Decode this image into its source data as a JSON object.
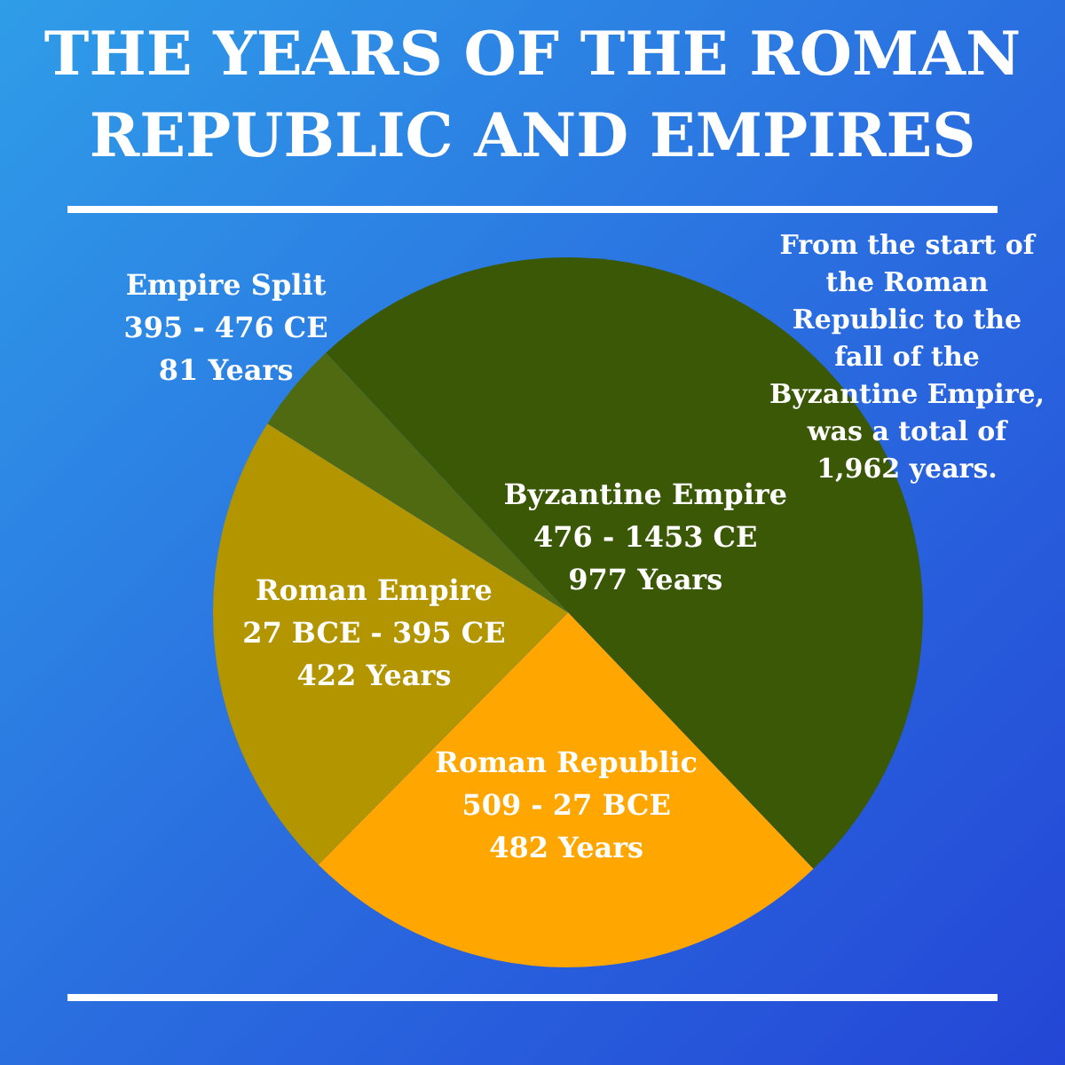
{
  "chart_data": {
    "type": "pie",
    "title": "THE YEARS OF THE ROMAN REPUBLIC AND EMPIRES",
    "categories": [
      "Byzantine Empire\n476 - 1453 CE",
      "Roman Republic\n509 - 27 BCE",
      "Roman Empire\n27 BCE - 395 CE",
      "Empire Split\n395 - 476 CE"
    ],
    "values": [
      977,
      482,
      422,
      81
    ],
    "value_labels": [
      "977 Years",
      "482 Years",
      "422 Years",
      "81 Years"
    ],
    "colors": [
      "#3a5806",
      "#ffa600",
      "#b39500",
      "#4f6a10"
    ],
    "legend": false,
    "annotations": [
      "From the start of the Roman Republic to the fall of the Byzantine Empire, was a total of 1,962 years."
    ]
  }
}
